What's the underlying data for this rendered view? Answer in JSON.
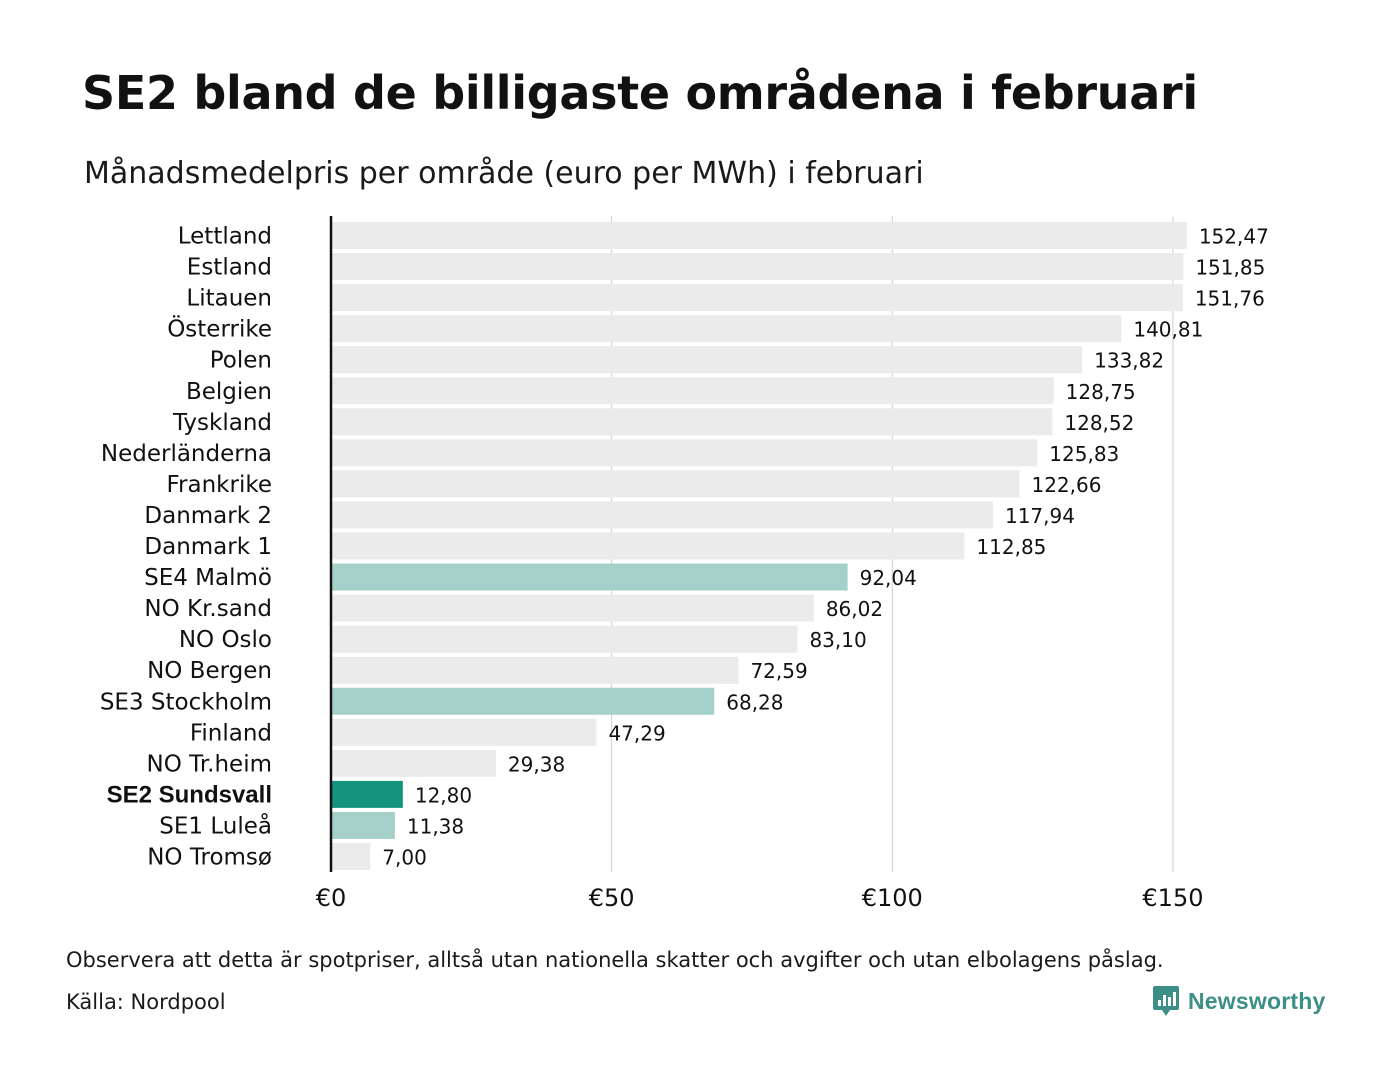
{
  "header": {
    "title": "SE2 bland de billigaste områdena i februari",
    "subtitle": "Månadsmedelpris per område (euro per MWh) i februari"
  },
  "footer": {
    "note": "Observera att detta är spotpriser, alltså utan nationella skatter och avgifter och utan elbolagens påslag.",
    "source": "Källa: Nordpool",
    "brand": "Newsworthy",
    "brand_icon": "newsworthy-logo-icon"
  },
  "colors": {
    "default_bar": "#ebebeb",
    "se_bar": "#a5d0ca",
    "highlight_bar": "#14937f",
    "grid": "#cfcfcf",
    "axis": "#111111",
    "brand": "#3b8f86"
  },
  "chart_data": {
    "type": "bar",
    "orientation": "horizontal",
    "title": "SE2 bland de billigaste områdena i februari",
    "subtitle": "Månadsmedelpris per område (euro per MWh) i februari",
    "categories": [
      "Lettland",
      "Estland",
      "Litauen",
      "Österrike",
      "Polen",
      "Belgien",
      "Tyskland",
      "Nederländerna",
      "Frankrike",
      "Danmark 2",
      "Danmark 1",
      "SE4 Malmö",
      "NO Kr.sand",
      "NO Oslo",
      "NO Bergen",
      "SE3 Stockholm",
      "Finland",
      "NO Tr.heim",
      "SE2 Sundsvall",
      "SE1 Luleå",
      "NO Tromsø"
    ],
    "values": [
      152.47,
      151.85,
      151.76,
      140.81,
      133.82,
      128.75,
      128.52,
      125.83,
      122.66,
      117.94,
      112.85,
      92.04,
      86.02,
      83.1,
      72.59,
      68.28,
      47.29,
      29.38,
      12.8,
      11.38,
      7.0
    ],
    "value_labels": [
      "152,47",
      "151,85",
      "151,76",
      "140,81",
      "133,82",
      "128,75",
      "128,52",
      "125,83",
      "122,66",
      "117,94",
      "112,85",
      "92,04",
      "86,02",
      "83,10",
      "72,59",
      "68,28",
      "47,29",
      "29,38",
      "12,80",
      "11,38",
      "7,00"
    ],
    "bar_styles": [
      "default",
      "default",
      "default",
      "default",
      "default",
      "default",
      "default",
      "default",
      "default",
      "default",
      "default",
      "se",
      "default",
      "default",
      "default",
      "se",
      "default",
      "default",
      "highlight",
      "se",
      "default"
    ],
    "xlim": [
      0,
      160
    ],
    "xticks": [
      0,
      50,
      100,
      150
    ],
    "xtick_labels": [
      "€0",
      "€50",
      "€100",
      "€150"
    ],
    "xlabel": "",
    "ylabel": "",
    "grid": "vertical",
    "legend": "none"
  }
}
